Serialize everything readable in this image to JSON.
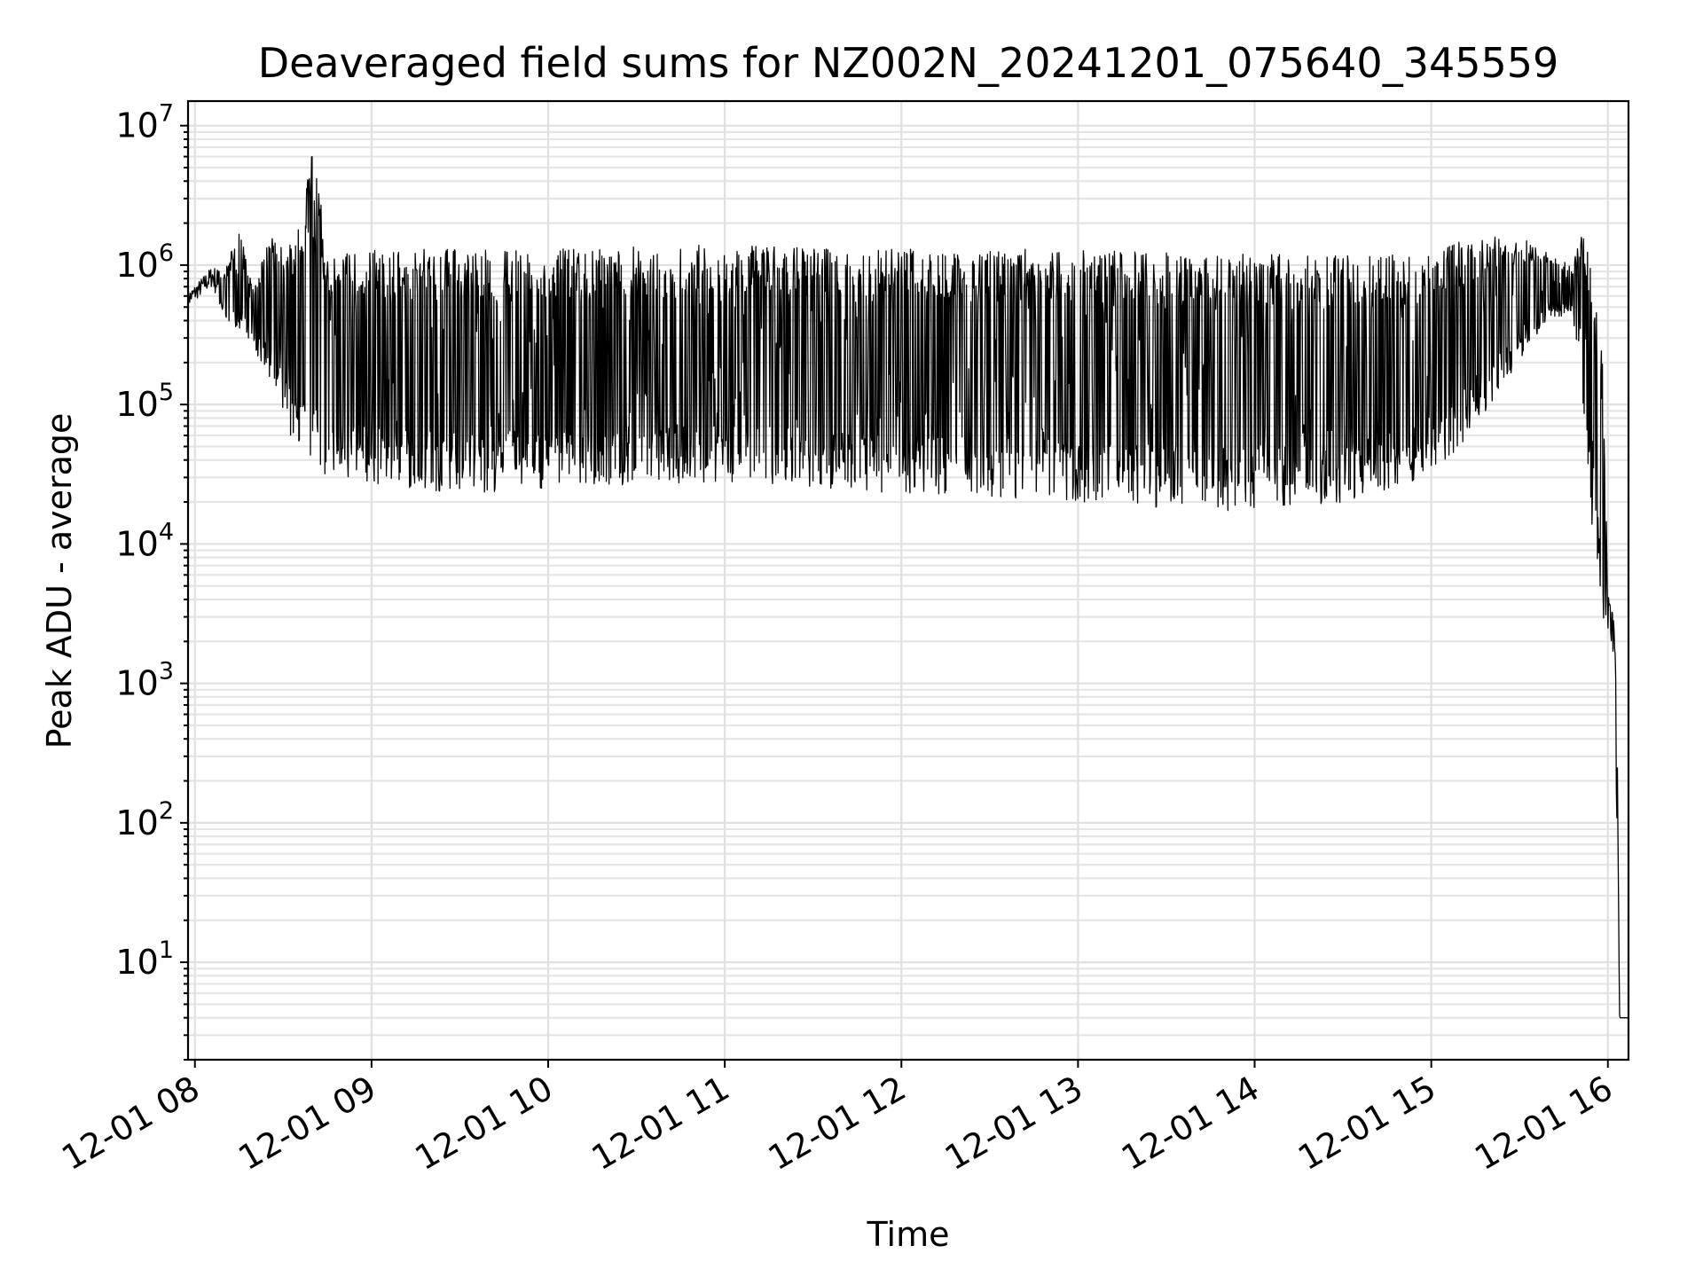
{
  "chart_data": {
    "type": "line",
    "title": "Deaveraged field sums for NZ002N_20241201_075640_345559",
    "xlabel": "Time",
    "ylabel": "Peak ADU - average",
    "yscale": "log",
    "ylim": [
      2,
      15000000
    ],
    "xlim": [
      "2024-12-01 07:57:40",
      "2024-12-01 16:07:00"
    ],
    "grid": true,
    "x_ticks": [
      "2024-12-01 08:00",
      "2024-12-01 09:00",
      "2024-12-01 10:00",
      "2024-12-01 11:00",
      "2024-12-01 12:00",
      "2024-12-01 13:00",
      "2024-12-01 14:00",
      "2024-12-01 15:00",
      "2024-12-01 16:00"
    ],
    "x_tick_labels": [
      "12-01 08",
      "12-01 09",
      "12-01 10",
      "12-01 11",
      "12-01 12",
      "12-01 13",
      "12-01 14",
      "12-01 15",
      "12-01 16"
    ],
    "y_ticks": [
      {
        "value": 10,
        "base": "10",
        "exp": "1"
      },
      {
        "value": 100,
        "base": "10",
        "exp": "2"
      },
      {
        "value": 1000,
        "base": "10",
        "exp": "3"
      },
      {
        "value": 10000,
        "base": "10",
        "exp": "4"
      },
      {
        "value": 100000,
        "base": "10",
        "exp": "5"
      },
      {
        "value": 1000000,
        "base": "10",
        "exp": "6"
      },
      {
        "value": 10000000,
        "base": "10",
        "exp": "7"
      }
    ],
    "series": [
      {
        "color": "#000000",
        "x": [
          "2024-12-01 07:57:40",
          "2024-12-01 08:02",
          "2024-12-01 08:06",
          "2024-12-01 08:10",
          "2024-12-01 08:15",
          "2024-12-01 08:20",
          "2024-12-01 08:25",
          "2024-12-01 08:30",
          "2024-12-01 08:35",
          "2024-12-01 08:40",
          "2024-12-01 08:45",
          "2024-12-01 08:50",
          "2024-12-01 08:55",
          "2024-12-01 09:00",
          "2024-12-01 09:15",
          "2024-12-01 09:30",
          "2024-12-01 10:00",
          "2024-12-01 11:00",
          "2024-12-01 12:00",
          "2024-12-01 13:00",
          "2024-12-01 13:45",
          "2024-12-01 14:30",
          "2024-12-01 15:00",
          "2024-12-01 15:10",
          "2024-12-01 15:20",
          "2024-12-01 15:30",
          "2024-12-01 15:40",
          "2024-12-01 15:48",
          "2024-12-01 15:52",
          "2024-12-01 15:55",
          "2024-12-01 15:58",
          "2024-12-01 16:00",
          "2024-12-01 16:02",
          "2024-12-01 16:03",
          "2024-12-01 16:04",
          "2024-12-01 16:07"
        ],
        "y_peak": [
          650000,
          800000,
          1000000,
          900000,
          1800000,
          700000,
          1500000,
          1700000,
          1800000,
          7000000,
          1300000,
          1300000,
          1300000,
          1300000,
          1300000,
          1300000,
          1300000,
          1400000,
          1300000,
          1300000,
          1200000,
          1200000,
          1200000,
          1500000,
          1600000,
          1600000,
          1200000,
          1000000,
          1900000,
          700000,
          300000,
          5000,
          3000,
          1000,
          4,
          4
        ],
        "y_low": [
          500000,
          600000,
          700000,
          400000,
          350000,
          250000,
          150000,
          80000,
          45000,
          35000,
          30000,
          28000,
          27000,
          27000,
          25000,
          23000,
          25000,
          28000,
          23000,
          20000,
          17000,
          20000,
          30000,
          50000,
          100000,
          200000,
          400000,
          450000,
          80000,
          10000,
          3000,
          2500,
          1500,
          100,
          4,
          4
        ]
      }
    ]
  }
}
